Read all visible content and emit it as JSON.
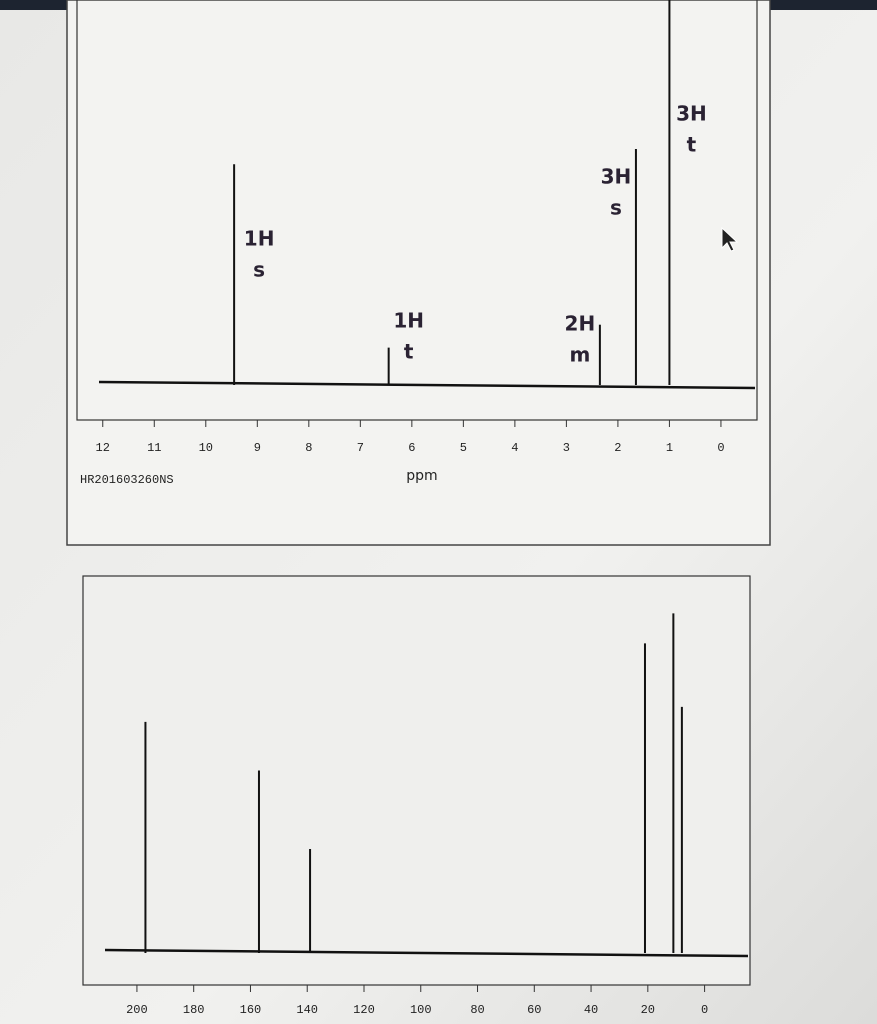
{
  "chart_data": [
    {
      "type": "spectrum",
      "x_label": "ppm",
      "annotation": "HR201603260NS",
      "x": [
        9.45,
        6.45,
        2.35,
        1.65,
        1.0
      ],
      "values": [
        57,
        9,
        15,
        61,
        100
      ],
      "integrals": [
        "1H",
        "1H",
        "2H",
        "3H",
        "3H"
      ],
      "multiplicities": [
        "s",
        "t",
        "m",
        "s",
        "t"
      ],
      "color": "#111111",
      "xlim": [
        12.5,
        -0.7
      ],
      "ylim": [
        0,
        100
      ],
      "xticks": [
        12,
        11,
        10,
        9,
        8,
        7,
        6,
        5,
        4,
        3,
        2,
        1,
        0
      ]
    },
    {
      "type": "spectrum",
      "x": [
        197,
        157,
        139,
        21,
        11,
        8
      ],
      "values": [
        61,
        48,
        27,
        82,
        90,
        65
      ],
      "color": "#111111",
      "xlim": [
        219,
        -16
      ],
      "ylim": [
        0,
        100
      ],
      "xticks": [
        200,
        180,
        160,
        140,
        120,
        100,
        80,
        60,
        40,
        20,
        0
      ]
    }
  ]
}
